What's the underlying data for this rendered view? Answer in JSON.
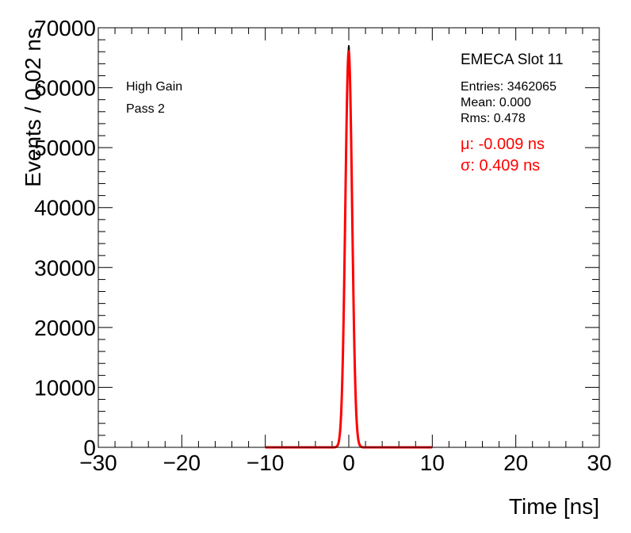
{
  "chart_data": {
    "type": "histogram",
    "xlabel": "Time [ns]",
    "ylabel": "Events / 0.02 ns",
    "xlim": [
      -30,
      30
    ],
    "ylim": [
      0,
      70000
    ],
    "x_ticks": [
      -30,
      -20,
      -10,
      0,
      10,
      20,
      30
    ],
    "x_tick_labels": [
      "−30",
      "−20",
      "−10",
      "0",
      "10",
      "20",
      "30"
    ],
    "y_ticks": [
      0,
      10000,
      20000,
      30000,
      40000,
      50000,
      60000,
      70000
    ],
    "y_tick_labels": [
      "0",
      "10000",
      "20000",
      "30000",
      "40000",
      "50000",
      "60000",
      "70000"
    ],
    "grid": false,
    "annotations_left": [
      "High Gain",
      "Pass 2"
    ],
    "stats": {
      "title": "EMECA Slot 11",
      "entries": "Entries: 3462065",
      "mean": "Mean: 0.000",
      "rms": "Rms: 0.478"
    },
    "fit_text": {
      "mu": "μ: -0.009 ns",
      "sigma": "σ: 0.409 ns"
    },
    "series": [
      {
        "kind": "histogram",
        "color": "#000000",
        "bin_width": 0.02,
        "peak_x": 0.0,
        "peak": 67000,
        "sigma": 0.42,
        "x_range": [
          -2,
          2
        ]
      },
      {
        "kind": "gaussian-fit",
        "color": "#ff0000",
        "mu": -0.009,
        "sigma": 0.409,
        "amplitude": 66000,
        "x_range": [
          -10,
          10
        ]
      }
    ]
  }
}
